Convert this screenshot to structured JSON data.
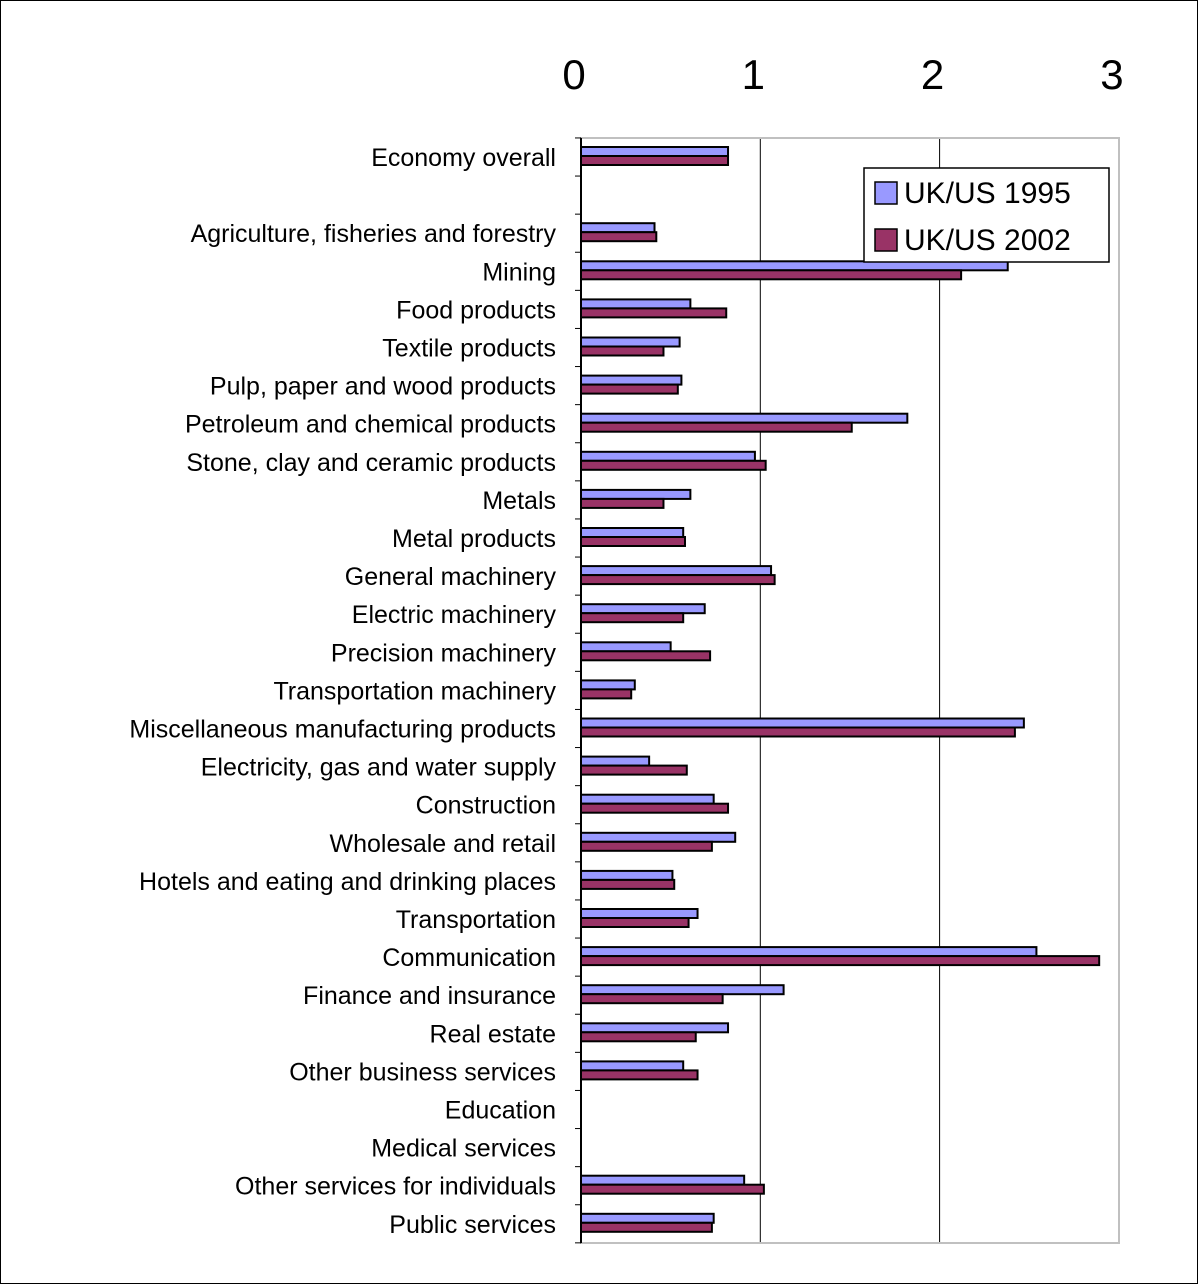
{
  "chart_data": {
    "type": "bar",
    "orientation": "horizontal",
    "xlim": [
      0,
      3
    ],
    "xticks": [
      0,
      1,
      2,
      3
    ],
    "xtick_labels": [
      "0",
      "1",
      "2",
      "3"
    ],
    "xaxis_position": "top",
    "grid": true,
    "legend_position": "top-right",
    "categories": [
      "Economy overall",
      "",
      "Agriculture, fisheries and forestry",
      "Mining",
      "Food products",
      "Textile products",
      "Pulp, paper and wood products",
      "Petroleum and chemical products",
      "Stone, clay and ceramic products",
      "Metals",
      "Metal products",
      "General machinery",
      "Electric machinery",
      "Precision machinery",
      "Transportation machinery",
      "Miscellaneous manufacturing products",
      "Electricity, gas and water supply",
      "Construction",
      "Wholesale and retail",
      "Hotels and eating and drinking places",
      "Transportation",
      "Communication",
      "Finance and insurance",
      "Real estate",
      "Other business services",
      "Education",
      "Medical services",
      "Other services for individuals",
      "Public services"
    ],
    "series": [
      {
        "name": "UK/US 1995",
        "color": "#9999ff",
        "values": [
          0.82,
          null,
          0.41,
          2.38,
          0.61,
          0.55,
          0.56,
          1.82,
          0.97,
          0.61,
          0.57,
          1.06,
          0.69,
          0.5,
          0.3,
          2.47,
          0.38,
          0.74,
          0.86,
          0.51,
          0.65,
          2.54,
          1.13,
          0.82,
          0.57,
          null,
          null,
          0.91,
          0.74
        ]
      },
      {
        "name": "UK/US 2002",
        "color": "#993366",
        "values": [
          0.82,
          null,
          0.42,
          2.12,
          0.81,
          0.46,
          0.54,
          1.51,
          1.03,
          0.46,
          0.58,
          1.08,
          0.57,
          0.72,
          0.28,
          2.42,
          0.59,
          0.82,
          0.73,
          0.52,
          0.6,
          2.89,
          0.79,
          0.64,
          0.65,
          null,
          null,
          1.02,
          0.73
        ]
      }
    ]
  }
}
